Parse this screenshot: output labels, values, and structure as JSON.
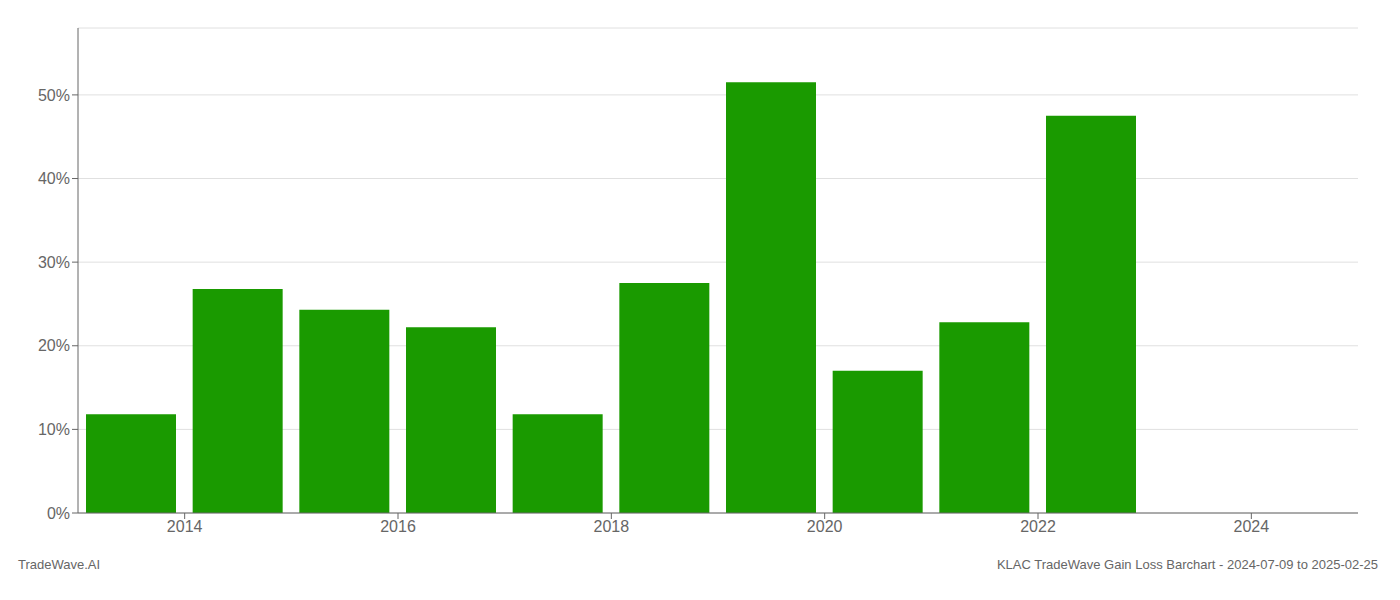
{
  "chart_data": {
    "type": "bar",
    "x": [
      2013.5,
      2014.5,
      2015.5,
      2016.5,
      2017.5,
      2018.5,
      2019.5,
      2020.5,
      2021.5,
      2022.5
    ],
    "values": [
      0.118,
      0.268,
      0.243,
      0.222,
      0.118,
      0.275,
      0.515,
      0.17,
      0.228,
      0.475
    ],
    "color": "#1a9a00",
    "xlim": [
      2013.0,
      2025.0
    ],
    "xticks": [
      2014,
      2016,
      2018,
      2020,
      2022,
      2024
    ],
    "ylim": [
      0,
      0.58
    ],
    "yticks": [
      {
        "value": 0.0,
        "label": "0%"
      },
      {
        "value": 0.1,
        "label": "10%"
      },
      {
        "value": 0.2,
        "label": "20%"
      },
      {
        "value": 0.3,
        "label": "30%"
      },
      {
        "value": 0.4,
        "label": "40%"
      },
      {
        "value": 0.5,
        "label": "50%"
      }
    ],
    "grid": true,
    "annotations": [
      "TradeWave.AI",
      "KLAC TradeWave Gain Loss Barchart - 2024-07-09 to 2025-02-25"
    ]
  }
}
